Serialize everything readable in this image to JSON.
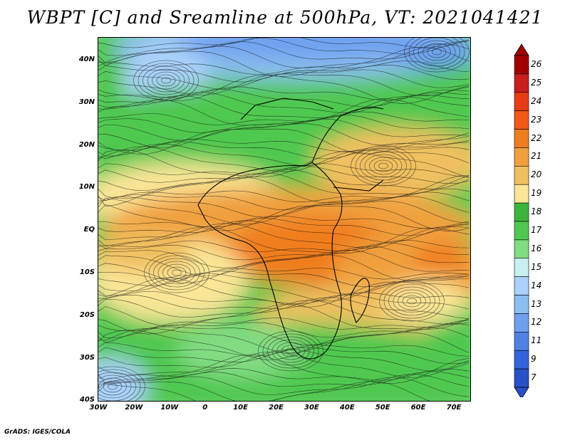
{
  "title": "WBPT [C] and Sreamline at 500hPa, VT: 2021041421",
  "footer": "GrADS: IGES/COLA",
  "map": {
    "lat_labels": [
      "40N",
      "30N",
      "20N",
      "10N",
      "EQ",
      "10S",
      "20S",
      "30S",
      "40S"
    ],
    "lon_labels": [
      "30W",
      "20W",
      "10W",
      "0",
      "10E",
      "20E",
      "30E",
      "40E",
      "50E",
      "60E",
      "70E"
    ]
  },
  "colorbar": {
    "levels": [
      "26",
      "25",
      "24",
      "23",
      "22",
      "21",
      "20",
      "19",
      "18",
      "17",
      "16",
      "15",
      "14",
      "13",
      "12",
      "11",
      "9",
      "7"
    ],
    "colors": [
      "#a00000",
      "#c81e1e",
      "#e63c14",
      "#f05a14",
      "#f07d1e",
      "#f0a03c",
      "#f0c060",
      "#fae696",
      "#3cb43c",
      "#50c850",
      "#82dc82",
      "#c8f0f0",
      "#aad2fa",
      "#8cbef0",
      "#6ea0f0",
      "#5082e6",
      "#3264dc",
      "#2850c8"
    ]
  }
}
